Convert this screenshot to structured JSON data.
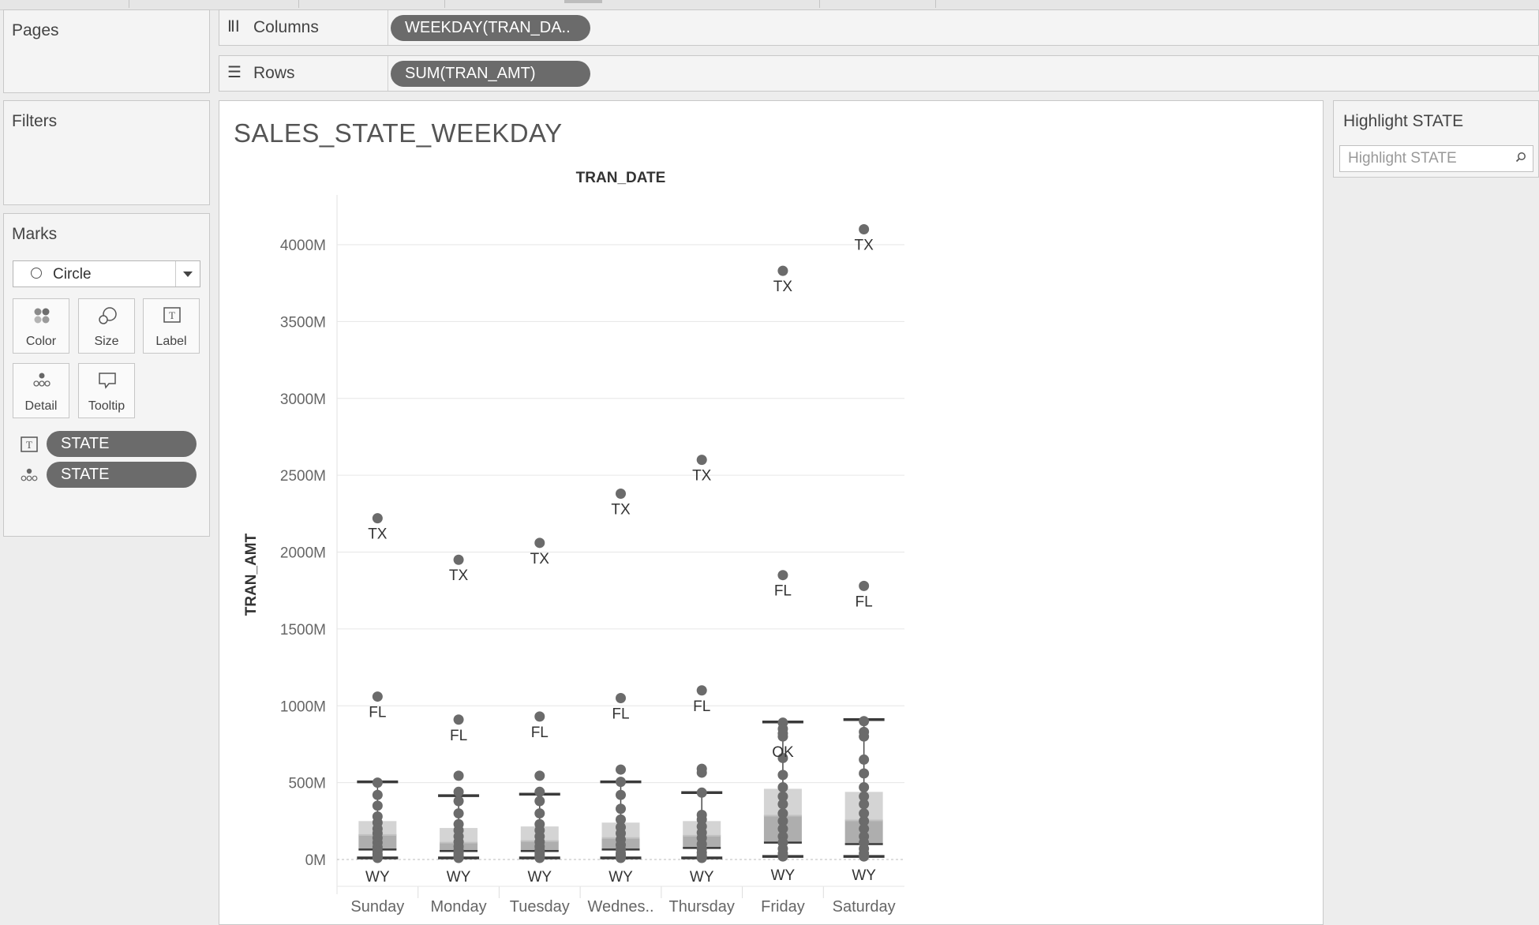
{
  "pages": {
    "title": "Pages"
  },
  "filters": {
    "title": "Filters"
  },
  "marks": {
    "title": "Marks",
    "mark_type": "Circle",
    "buttons": {
      "color": "Color",
      "size": "Size",
      "label": "Label",
      "detail": "Detail",
      "tooltip": "Tooltip"
    },
    "fields": [
      {
        "kind": "label-icon",
        "name": "STATE"
      },
      {
        "kind": "detail-icon",
        "name": "STATE"
      }
    ]
  },
  "columns_shelf": {
    "label": "Columns",
    "pill": "WEEKDAY(TRAN_DA.."
  },
  "rows_shelf": {
    "label": "Rows",
    "pill": "SUM(TRAN_AMT)"
  },
  "view": {
    "title": "SALES_STATE_WEEKDAY"
  },
  "highlight": {
    "title": "Highlight STATE",
    "placeholder": "Highlight STATE"
  },
  "colors": {
    "pill": "#6b6b6b",
    "mark": "#6b6b6b",
    "box_upper": "#d4d4d4",
    "box_lower": "#aeaeae",
    "box_mid_band": "#c2c2c2",
    "background": "#ededed"
  },
  "chart_data": {
    "type": "scatter",
    "subtype": "box-and-whisker with labeled circle marks",
    "xlabel": "TRAN_DATE",
    "ylabel": "TRAN_AMT",
    "ylim": [
      -230,
      4350
    ],
    "yticks": [
      0,
      500,
      1000,
      1500,
      2000,
      2500,
      3000,
      3500,
      4000
    ],
    "ytick_labels": [
      "0M",
      "500M",
      "1000M",
      "1500M",
      "2000M",
      "2500M",
      "3000M",
      "3500M",
      "4000M"
    ],
    "unit": "M",
    "categories": [
      "Sunday",
      "Monday",
      "Tuesday",
      "Wednes..",
      "Thursday",
      "Friday",
      "Saturday"
    ],
    "grid": true,
    "labeled_points": [
      {
        "day": "Sunday",
        "label": "TX",
        "value": 2220
      },
      {
        "day": "Sunday",
        "label": "FL",
        "value": 1060
      },
      {
        "day": "Sunday",
        "label": "WY",
        "value": 10
      },
      {
        "day": "Monday",
        "label": "TX",
        "value": 1950
      },
      {
        "day": "Monday",
        "label": "FL",
        "value": 910
      },
      {
        "day": "Monday",
        "label": "WY",
        "value": 10
      },
      {
        "day": "Tuesday",
        "label": "TX",
        "value": 2060
      },
      {
        "day": "Tuesday",
        "label": "FL",
        "value": 930
      },
      {
        "day": "Tuesday",
        "label": "WY",
        "value": 10
      },
      {
        "day": "Wednes..",
        "label": "TX",
        "value": 2380
      },
      {
        "day": "Wednes..",
        "label": "FL",
        "value": 1050
      },
      {
        "day": "Wednes..",
        "label": "WY",
        "value": 10
      },
      {
        "day": "Thursday",
        "label": "TX",
        "value": 2600
      },
      {
        "day": "Thursday",
        "label": "FL",
        "value": 1100
      },
      {
        "day": "Thursday",
        "label": "WY",
        "value": 10
      },
      {
        "day": "Friday",
        "label": "TX",
        "value": 3830
      },
      {
        "day": "Friday",
        "label": "FL",
        "value": 1850
      },
      {
        "day": "Friday",
        "label": "OK",
        "value": 800
      },
      {
        "day": "Friday",
        "label": "WY",
        "value": 20
      },
      {
        "day": "Saturday",
        "label": "TX",
        "value": 4100
      },
      {
        "day": "Saturday",
        "label": "FL",
        "value": 1780
      },
      {
        "day": "Saturday",
        "label": "WY",
        "value": 20
      }
    ],
    "other_points": [
      {
        "day": "Sunday",
        "values": [
          500,
          420,
          350,
          280,
          240,
          200,
          170,
          140,
          110,
          80,
          55,
          35,
          20
        ]
      },
      {
        "day": "Monday",
        "values": [
          545,
          440,
          380,
          300,
          230,
          190,
          150,
          115,
          85,
          60,
          40,
          25
        ]
      },
      {
        "day": "Tuesday",
        "values": [
          545,
          440,
          380,
          300,
          230,
          190,
          150,
          115,
          85,
          60,
          40,
          25
        ]
      },
      {
        "day": "Wednes..",
        "values": [
          585,
          505,
          420,
          330,
          260,
          210,
          170,
          130,
          95,
          65,
          40,
          25
        ]
      },
      {
        "day": "Thursday",
        "values": [
          590,
          565,
          435,
          290,
          260,
          215,
          175,
          140,
          100,
          70,
          45,
          25
        ]
      },
      {
        "day": "Friday",
        "values": [
          890,
          850,
          820,
          660,
          550,
          470,
          410,
          360,
          300,
          250,
          200,
          150,
          110,
          70,
          40
        ]
      },
      {
        "day": "Saturday",
        "values": [
          900,
          830,
          800,
          650,
          560,
          470,
          410,
          360,
          300,
          250,
          200,
          150,
          110,
          70,
          40
        ]
      }
    ],
    "boxes": [
      {
        "day": "Sunday",
        "whisker_low": 10,
        "q1": 65,
        "median": 160,
        "q3": 250,
        "whisker_high": 505
      },
      {
        "day": "Monday",
        "whisker_low": 10,
        "q1": 55,
        "median": 110,
        "q3": 205,
        "whisker_high": 415
      },
      {
        "day": "Tuesday",
        "whisker_low": 10,
        "q1": 55,
        "median": 120,
        "q3": 215,
        "whisker_high": 425
      },
      {
        "day": "Wednes..",
        "whisker_low": 10,
        "q1": 65,
        "median": 140,
        "q3": 240,
        "whisker_high": 505
      },
      {
        "day": "Thursday",
        "whisker_low": 10,
        "q1": 75,
        "median": 155,
        "q3": 250,
        "whisker_high": 435
      },
      {
        "day": "Friday",
        "whisker_low": 20,
        "q1": 110,
        "median": 285,
        "q3": 460,
        "whisker_high": 895
      },
      {
        "day": "Saturday",
        "whisker_low": 20,
        "q1": 100,
        "median": 255,
        "q3": 440,
        "whisker_high": 910
      }
    ]
  }
}
